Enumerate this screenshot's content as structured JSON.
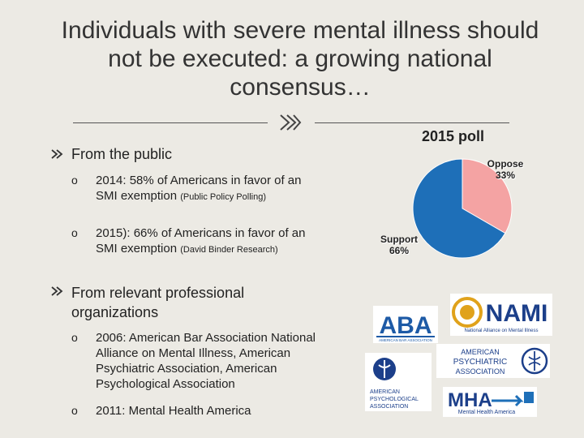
{
  "title": "Individuals with severe mental illness should not be executed: a growing national consensus…",
  "poll_label": "2015 poll",
  "sections": {
    "public": {
      "heading": "From the public",
      "items": [
        {
          "main": "2014: 58% of Americans in favor of an SMI exemption",
          "source": "(Public Policy Polling)"
        },
        {
          "main": "2015): 66% of Americans in favor of an SMI exemption",
          "source": "(David Binder Research)"
        }
      ]
    },
    "professional": {
      "heading": "From relevant professional organizations",
      "items": [
        {
          "main": "2006: American Bar Association National Alliance on Mental Illness, American Psychiatric Association, American Psychological Association"
        },
        {
          "main": "2011: Mental Health America"
        }
      ]
    }
  },
  "chart_data": {
    "type": "pie",
    "title": "2015 poll",
    "slices": [
      {
        "label": "Oppose",
        "value": 33,
        "display": "33%",
        "color": "#f4a3a3"
      },
      {
        "label": "Support",
        "value": 66,
        "display": "66%",
        "color": "#1e6fb8"
      }
    ]
  },
  "logos": {
    "aba": {
      "text": "ABA",
      "caption": "AMERICAN BAR ASSOCIATION"
    },
    "nami": {
      "text": "NAMI",
      "caption": "National Alliance on Mental Illness"
    },
    "apa_psychiatric": {
      "line1": "AMERICAN",
      "line2": "PSYCHIATRIC",
      "line3": "ASSOCIATION"
    },
    "apa_psychological": {
      "line1": "AMERICAN",
      "line2": "PSYCHOLOGICAL",
      "line3": "ASSOCIATION"
    },
    "mha": {
      "text": "MHA",
      "caption": "Mental Health America"
    }
  },
  "colors": {
    "text": "#222222",
    "oppose": "#f4a3a3",
    "support": "#1e6fb8",
    "aba_blue": "#1d5aa6",
    "nami_blue": "#1c3f8a",
    "nami_gold": "#e0a21b"
  }
}
